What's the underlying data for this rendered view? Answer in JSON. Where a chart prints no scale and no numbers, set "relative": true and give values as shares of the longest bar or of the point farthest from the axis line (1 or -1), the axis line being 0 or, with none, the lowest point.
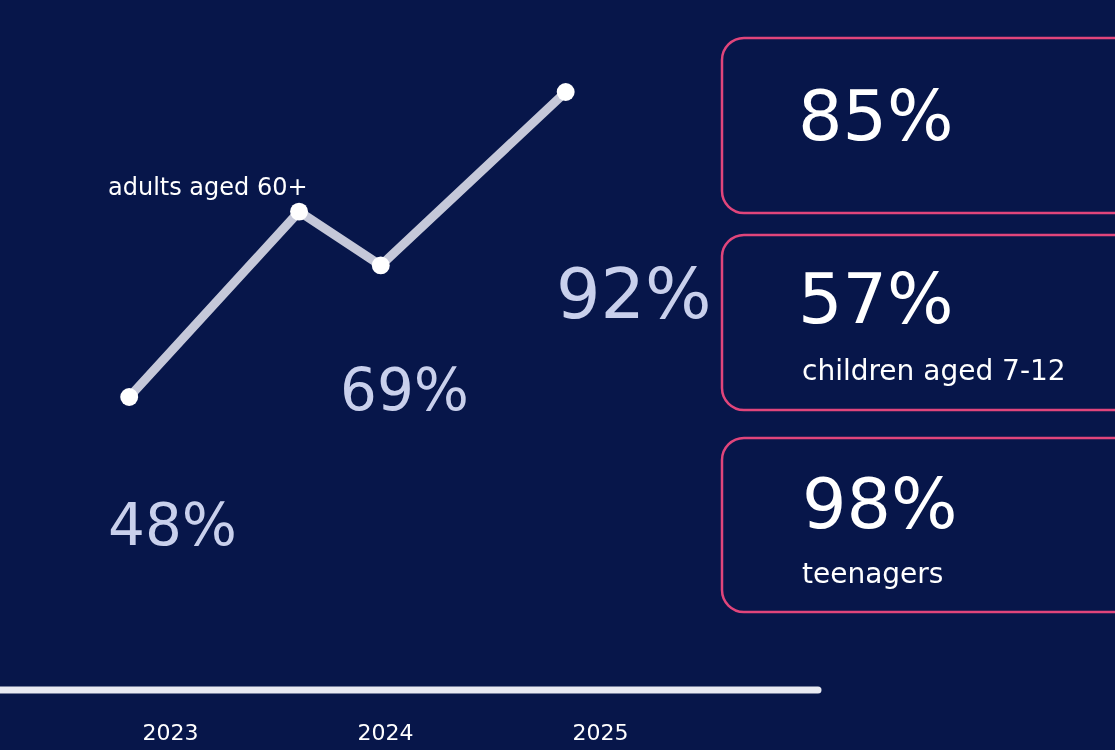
{
  "chart_data": {
    "type": "line",
    "relative": true,
    "x": [
      2022.81,
      2023.6,
      2023.98,
      2024.84
    ],
    "series": [
      {
        "color": "#e6e8f2",
        "values": [
          0.49,
          0.8,
          0.71,
          1.0
        ]
      }
    ],
    "xlim": [
      2022.209,
      2027.395
    ],
    "xticks": [
      2023,
      2024,
      2025
    ],
    "marker": "circle",
    "line_style": "solid",
    "grid": false,
    "annotations": [
      "adults aged 60+",
      "48%",
      "69%",
      "92%",
      "85%",
      "57%",
      "children aged 7-12",
      "98%",
      "teenagers"
    ]
  }
}
